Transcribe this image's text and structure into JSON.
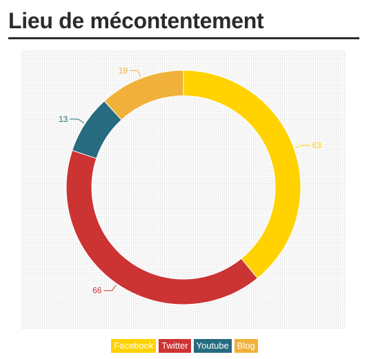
{
  "page": {
    "title": "Lieu de mécontentement"
  },
  "chart_data": {
    "type": "pie",
    "subtype": "donut",
    "title": "Lieu de mécontentement",
    "grid": false,
    "legend_position": "bottom-center",
    "series": [
      {
        "name": "Facebook",
        "value": 63,
        "color": "#FFD200"
      },
      {
        "name": "Twitter",
        "value": 66,
        "color": "#CC3333"
      },
      {
        "name": "Youtube",
        "value": 13,
        "color": "#266B7F"
      },
      {
        "name": "Blog",
        "value": 19,
        "color": "#F0B13A"
      }
    ]
  }
}
